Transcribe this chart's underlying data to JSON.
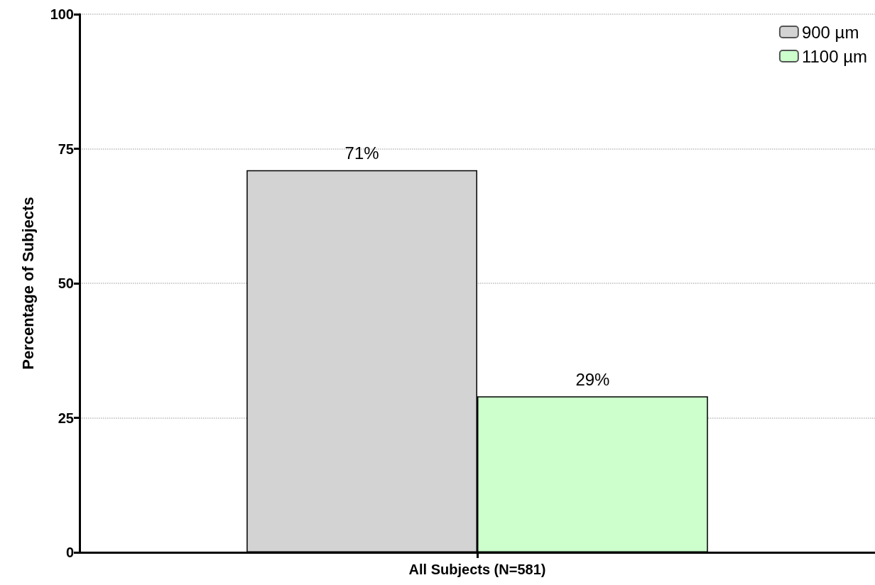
{
  "chart_data": {
    "type": "bar",
    "ylabel": "Percentage of Subjects",
    "categories": [
      "All Subjects (N=581)"
    ],
    "series": [
      {
        "name": "900 µm",
        "color": "#d3d3d3",
        "values": [
          71
        ],
        "value_labels": [
          "71%"
        ]
      },
      {
        "name": "1100 µm",
        "color": "#ccffcc",
        "values": [
          29
        ],
        "value_labels": [
          "29%"
        ]
      }
    ],
    "ylim": [
      0,
      100
    ],
    "yticks": [
      0,
      25,
      50,
      75,
      100
    ],
    "grid": "y",
    "legend": "top right"
  }
}
